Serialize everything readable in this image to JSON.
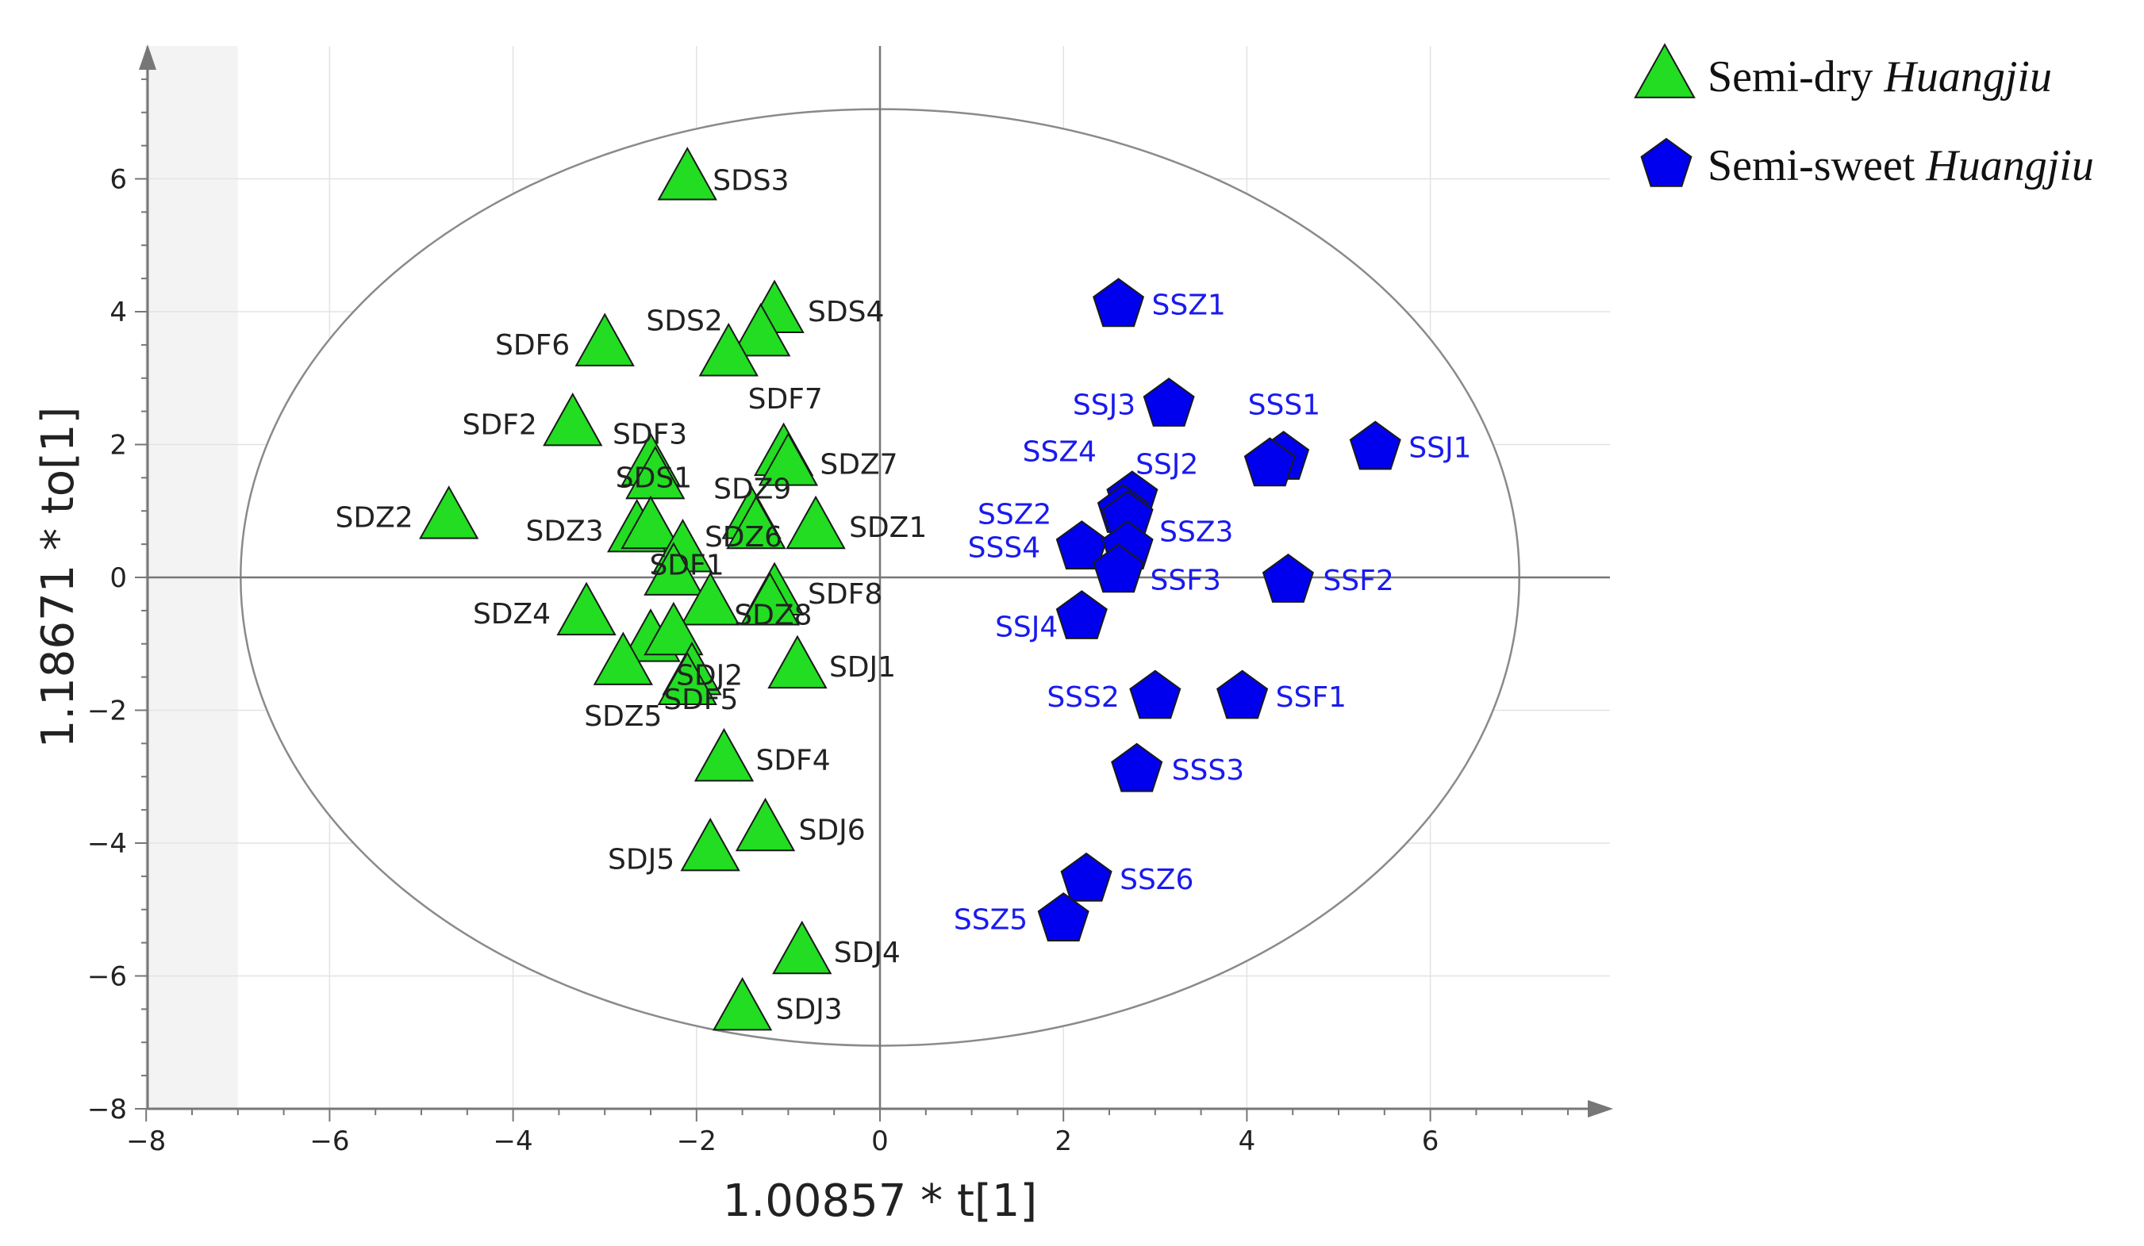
{
  "chart_data": {
    "type": "scatter",
    "title": "",
    "xlabel": "1.00857 * t[1]",
    "ylabel": "1.18671 * to[1]",
    "xlim": [
      -8,
      8
    ],
    "ylim": [
      -8,
      7.6
    ],
    "xticks": [
      -8,
      -6,
      -4,
      -2,
      0,
      2,
      4,
      6
    ],
    "yticks": [
      -8,
      -6,
      -4,
      -2,
      0,
      2,
      4,
      6
    ],
    "xtick_labels": [
      "−8",
      "−6",
      "−4",
      "−2",
      "0",
      "2",
      "4",
      "6"
    ],
    "ytick_labels": [
      "−8",
      "−6",
      "−4",
      "−2",
      "0",
      "2",
      "4",
      "6"
    ],
    "shaded_region_xmin": -7,
    "confidence_ellipse": {
      "cx": 0,
      "cy": 0,
      "rx": 6.97,
      "ry": 7.05
    },
    "legend_position": "top-right",
    "series": [
      {
        "name": "Semi-dry Huangjiu",
        "legend_main": "Semi-dry ",
        "legend_italic": "Huangjiu",
        "marker": "triangle",
        "color": "#22dd22",
        "label_color": "#222222",
        "points": [
          {
            "label": "SDS3",
            "x": -2.1,
            "y": 6.0
          },
          {
            "label": "SDS4",
            "x": -1.15,
            "y": 4.0
          },
          {
            "label": "SDS2",
            "x": -1.3,
            "y": 3.65
          },
          {
            "label": "",
            "x": -1.65,
            "y": 3.35
          },
          {
            "label": "SDF6",
            "x": -3.0,
            "y": 3.5
          },
          {
            "label": "SDF2",
            "x": -3.35,
            "y": 2.3
          },
          {
            "label": "SDF3",
            "x": -2.5,
            "y": 1.7
          },
          {
            "label": "SDS1",
            "x": -2.45,
            "y": 1.5
          },
          {
            "label": "SDF7",
            "x": -1.05,
            "y": 1.85
          },
          {
            "label": "SDZ7",
            "x": -1.0,
            "y": 1.7
          },
          {
            "label": "SDZ9",
            "x": -1.4,
            "y": 0.9
          },
          {
            "label": "SDZ6",
            "x": -1.35,
            "y": 0.75
          },
          {
            "label": "SDZ1",
            "x": -0.7,
            "y": 0.75
          },
          {
            "label": "SDZ2",
            "x": -4.7,
            "y": 0.9
          },
          {
            "label": "SDZ3",
            "x": -2.65,
            "y": 0.7
          },
          {
            "label": "",
            "x": -2.5,
            "y": 0.75
          },
          {
            "label": "SDF1",
            "x": -2.15,
            "y": 0.4
          },
          {
            "label": "",
            "x": -2.25,
            "y": 0.05
          },
          {
            "label": "SDZ4",
            "x": -3.2,
            "y": -0.55
          },
          {
            "label": "",
            "x": -1.85,
            "y": -0.4
          },
          {
            "label": "SDF8",
            "x": -1.15,
            "y": -0.25
          },
          {
            "label": "SDZ8",
            "x": -1.2,
            "y": -0.4
          },
          {
            "label": "",
            "x": -2.5,
            "y": -0.95
          },
          {
            "label": "",
            "x": -2.25,
            "y": -0.85
          },
          {
            "label": "SDZ5",
            "x": -2.8,
            "y": -1.3
          },
          {
            "label": "SDJ2",
            "x": -2.05,
            "y": -1.45
          },
          {
            "label": "SDF5",
            "x": -2.1,
            "y": -1.6
          },
          {
            "label": "SDJ1",
            "x": -0.9,
            "y": -1.35
          },
          {
            "label": "SDF4",
            "x": -1.7,
            "y": -2.75
          },
          {
            "label": "SDJ6",
            "x": -1.25,
            "y": -3.8
          },
          {
            "label": "SDJ5",
            "x": -1.85,
            "y": -4.1
          },
          {
            "label": "SDJ4",
            "x": -0.85,
            "y": -5.65
          },
          {
            "label": "SDJ3",
            "x": -1.5,
            "y": -6.5
          }
        ]
      },
      {
        "name": "Semi-sweet Huangjiu",
        "legend_main": "Semi-sweet ",
        "legend_italic": "Huangjiu",
        "marker": "pentagon",
        "color": "#0000ee",
        "label_color": "#1a1aee",
        "points": [
          {
            "label": "SSZ1",
            "x": 2.6,
            "y": 4.1
          },
          {
            "label": "SSJ3",
            "x": 3.15,
            "y": 2.6
          },
          {
            "label": "SSS1",
            "x": 4.4,
            "y": 1.8
          },
          {
            "label": "SSJ2",
            "x": 4.25,
            "y": 1.7
          },
          {
            "label": "SSJ1",
            "x": 5.4,
            "y": 1.95
          },
          {
            "label": "SSZ4",
            "x": 2.75,
            "y": 1.2
          },
          {
            "label": "",
            "x": 2.65,
            "y": 1.0
          },
          {
            "label": "SSZ3",
            "x": 2.7,
            "y": 0.9
          },
          {
            "label": "SSZ2",
            "x": 2.2,
            "y": 0.45
          },
          {
            "label": "SSS4",
            "x": 2.7,
            "y": 0.45
          },
          {
            "label": "SSF3",
            "x": 2.6,
            "y": 0.1
          },
          {
            "label": "SSF2",
            "x": 4.45,
            "y": -0.05
          },
          {
            "label": "SSJ4",
            "x": 2.2,
            "y": -0.6
          },
          {
            "label": "SSS2",
            "x": 3.0,
            "y": -1.8
          },
          {
            "label": "SSF1",
            "x": 3.95,
            "y": -1.8
          },
          {
            "label": "SSS3",
            "x": 2.8,
            "y": -2.9
          },
          {
            "label": "SSZ6",
            "x": 2.25,
            "y": -4.55
          },
          {
            "label": "SSZ5",
            "x": 2.0,
            "y": -5.15
          }
        ]
      }
    ]
  }
}
